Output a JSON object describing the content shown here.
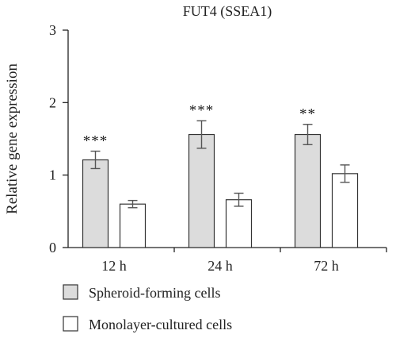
{
  "chart_data": {
    "type": "bar",
    "title": "FUT4 (SSEA1)",
    "xlabel": "",
    "ylabel": "Relative gene expression",
    "ylim": [
      0,
      3
    ],
    "yticks": [
      "0",
      "1",
      "2",
      "3"
    ],
    "yticks_values": [
      0,
      1,
      2,
      3
    ],
    "categories": [
      "12 h",
      "24 h",
      "72 h"
    ],
    "series": [
      {
        "name": "Spheroid-forming cells",
        "color": "#dcdcdc",
        "values": [
          1.21,
          1.56,
          1.56
        ],
        "errors": [
          0.12,
          0.19,
          0.14
        ],
        "significance": [
          "***",
          "***",
          "**"
        ]
      },
      {
        "name": "Monolayer-cultured cells",
        "color": "#ffffff",
        "values": [
          0.6,
          0.66,
          1.02
        ],
        "errors": [
          0.05,
          0.09,
          0.12
        ],
        "significance": [
          "",
          "",
          ""
        ]
      }
    ],
    "legend_position": "bottom-left",
    "grid": false
  }
}
